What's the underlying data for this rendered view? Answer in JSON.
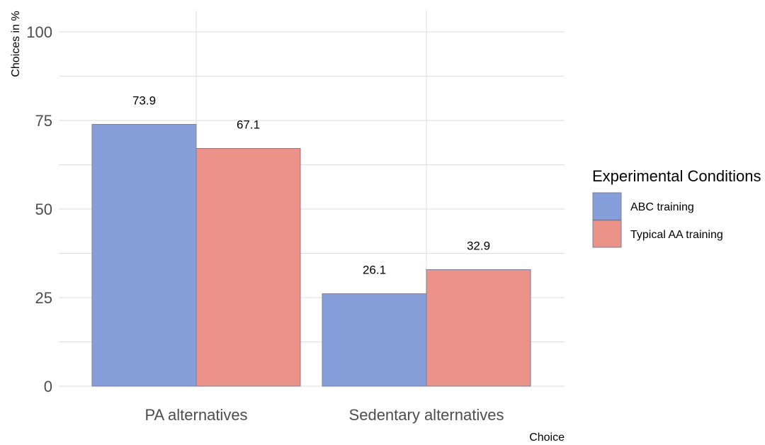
{
  "chart_data": {
    "type": "bar",
    "categories": [
      "PA alternatives",
      "Sedentary alternatives"
    ],
    "series": [
      {
        "name": "ABC training",
        "values": [
          73.9,
          26.1
        ],
        "color": "#869fdb"
      },
      {
        "name": "Typical AA training",
        "values": [
          67.1,
          32.9
        ],
        "color": "#eb9389"
      }
    ],
    "data_labels": [
      [
        "73.9",
        "26.1"
      ],
      [
        "67.1",
        "32.9"
      ]
    ],
    "xlabel": "Choice",
    "ylabel": "Choices in %",
    "ylim": [
      0,
      100
    ],
    "yticks": [
      0,
      25,
      50,
      75,
      100
    ],
    "legend_title": "Experimental Conditions",
    "legend_position": "right",
    "grid": true,
    "bar_edge_color": "#7f7f9a"
  }
}
